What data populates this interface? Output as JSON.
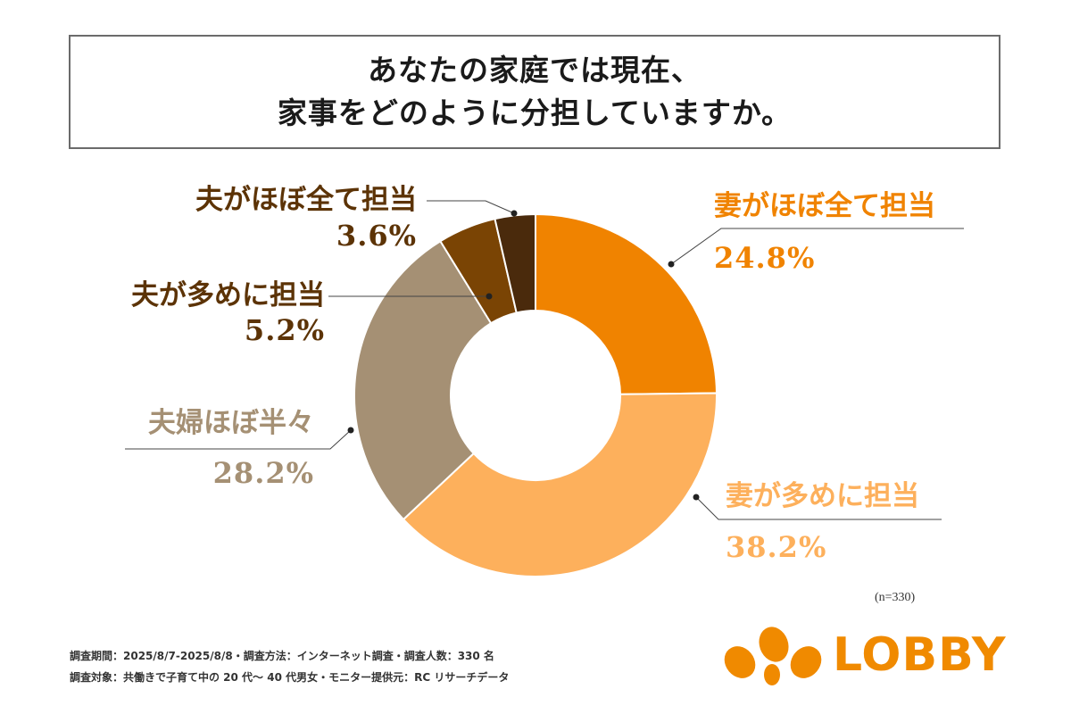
{
  "title": {
    "line1": "あなたの家庭では現在、",
    "line2": "家事をどのように分担していますか。"
  },
  "chart_data": {
    "type": "pie",
    "donut": true,
    "title": "あなたの家庭では現在、家事をどのように分担していますか。",
    "categories": [
      "妻がほぼ全て担当",
      "妻が多めに担当",
      "夫婦ほぼ半々",
      "夫が多めに担当",
      "夫がほぼ全て担当"
    ],
    "values": [
      24.8,
      38.2,
      28.2,
      5.2,
      3.6
    ],
    "value_labels": [
      "24.8%",
      "38.2%",
      "28.2%",
      "5.2%",
      "3.6%"
    ],
    "colors": [
      "#f08300",
      "#fdb05c",
      "#a59074",
      "#7a4404",
      "#4a2a0c"
    ],
    "label_colors": [
      "#f08300",
      "#fdb05c",
      "#a59074",
      "#5c3306",
      "#5c3306"
    ],
    "start": "12 o'clock",
    "direction": "clockwise"
  },
  "sample_size": "(n=330)",
  "footer": {
    "line1": "調査期間：2025/8/7-2025/8/8・調査方法：インターネット調査・調査人数：330 名",
    "line2": "調査対象：共働きで子育て中の 20 代〜 40 代男女・モニター提供元：RC リサーチデータ"
  },
  "logo": {
    "text": "LOBBY",
    "color": "#f08a00"
  }
}
